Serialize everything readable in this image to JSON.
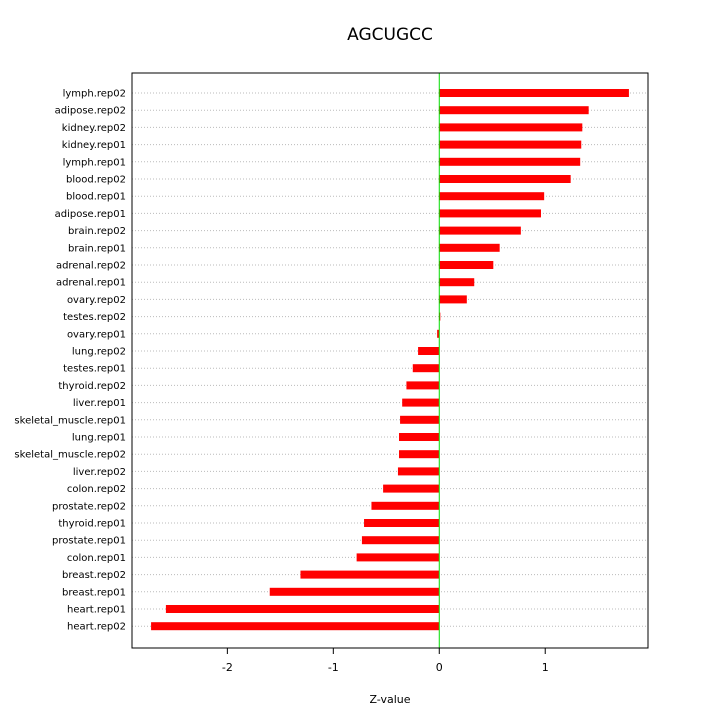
{
  "chart_data": {
    "type": "bar",
    "orientation": "horizontal",
    "title": "AGCUGCC",
    "xlabel": "Z-value",
    "ylabel": "",
    "xlim": [
      -2.9,
      1.97
    ],
    "xticks": [
      -2,
      -1,
      0,
      1
    ],
    "reference_line_x": 0,
    "grid": "horizontal dotted",
    "colors": {
      "bar": "#ff0000",
      "zero_line": "#00dd00",
      "grid": "#bbbbbb"
    },
    "categories": [
      "lymph.rep02",
      "adipose.rep02",
      "kidney.rep02",
      "kidney.rep01",
      "lymph.rep01",
      "blood.rep02",
      "blood.rep01",
      "adipose.rep01",
      "brain.rep02",
      "brain.rep01",
      "adrenal.rep02",
      "adrenal.rep01",
      "ovary.rep02",
      "testes.rep02",
      "ovary.rep01",
      "lung.rep02",
      "testes.rep01",
      "thyroid.rep02",
      "liver.rep01",
      "skeletal_muscle.rep01",
      "lung.rep01",
      "skeletal_muscle.rep02",
      "liver.rep02",
      "colon.rep02",
      "prostate.rep02",
      "thyroid.rep01",
      "prostate.rep01",
      "colon.rep01",
      "breast.rep02",
      "breast.rep01",
      "heart.rep01",
      "heart.rep02"
    ],
    "values": [
      1.79,
      1.41,
      1.35,
      1.34,
      1.33,
      1.24,
      0.99,
      0.96,
      0.77,
      0.57,
      0.51,
      0.33,
      0.26,
      0.01,
      -0.02,
      -0.2,
      -0.25,
      -0.31,
      -0.35,
      -0.37,
      -0.38,
      -0.38,
      -0.39,
      -0.53,
      -0.64,
      -0.71,
      -0.73,
      -0.78,
      -1.31,
      -1.6,
      -2.58,
      -2.72
    ]
  }
}
